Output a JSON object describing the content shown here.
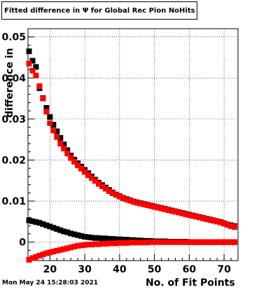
{
  "title": "Fitted difference in  Ψ  for Global Rec Pion NoHits",
  "footer": "Mon May 24 15:28:03 2021",
  "chart_data": {
    "type": "scatter",
    "title": "Fitted difference in  Ψ  for Global Rec Pion NoHits",
    "xlabel": "No. of Fit Points",
    "ylabel": "difference in",
    "xlim": [
      13.7,
      74
    ],
    "ylim": [
      -0.0045,
      0.052
    ],
    "grid": true,
    "x_ticks": [
      20,
      30,
      40,
      50,
      60,
      70
    ],
    "x_tick_labels": [
      "20",
      "30",
      "40",
      "50",
      "60",
      "70"
    ],
    "y_ticks": [
      0,
      0.01,
      0.02,
      0.03,
      0.04,
      0.05
    ],
    "y_tick_labels": [
      "0",
      "0.01",
      "0.02",
      "0.03",
      "0.04",
      "0.05"
    ],
    "x": [
      14,
      15,
      16,
      17,
      18,
      19,
      20,
      21,
      22,
      23,
      24,
      25,
      26,
      27,
      28,
      29,
      30,
      31,
      32,
      33,
      34,
      35,
      36,
      37,
      38,
      39,
      40,
      41,
      42,
      43,
      44,
      45,
      46,
      47,
      48,
      49,
      50,
      51,
      52,
      53,
      54,
      55,
      56,
      57,
      58,
      59,
      60,
      61,
      62,
      63,
      64,
      65,
      66,
      67,
      68,
      69,
      70,
      71,
      72,
      73
    ],
    "series": [
      {
        "color": "#000000",
        "marker": "square",
        "values": [
          0.0465,
          0.0442,
          0.0427,
          0.0375,
          0.0351,
          0.0327,
          0.0305,
          0.0286,
          0.027,
          0.0254,
          0.0238,
          0.0224,
          0.0211,
          0.0201,
          0.0192,
          0.0184,
          0.0176,
          0.0168,
          0.016,
          0.0152,
          0.0145,
          0.0139,
          0.0133,
          0.0127,
          0.0121,
          0.0116,
          0.0112,
          0.0108,
          0.0105,
          0.0102,
          0.0099,
          0.0097,
          0.0095,
          0.0093,
          0.0091,
          0.0089,
          0.0087,
          0.0085,
          0.0083,
          0.0081,
          0.0079,
          0.0077,
          0.0075,
          0.0073,
          0.0071,
          0.0069,
          0.0067,
          0.0065,
          0.0063,
          0.0061,
          0.0059,
          0.0057,
          0.0055,
          0.0053,
          0.0051,
          0.0049,
          0.0046,
          0.0043,
          0.0041,
          0.0039
        ]
      },
      {
        "color": "#ff0000",
        "marker": "square",
        "values": [
          0.0435,
          0.0418,
          0.0406,
          0.038,
          0.035,
          0.0318,
          0.029,
          0.0272,
          0.0256,
          0.024,
          0.0228,
          0.0216,
          0.0205,
          0.0196,
          0.0187,
          0.0179,
          0.0171,
          0.0163,
          0.0156,
          0.0149,
          0.0142,
          0.0136,
          0.013,
          0.0124,
          0.0119,
          0.0115,
          0.0111,
          0.0107,
          0.0104,
          0.0101,
          0.0098,
          0.0096,
          0.0094,
          0.0092,
          0.009,
          0.0088,
          0.0086,
          0.0084,
          0.0082,
          0.008,
          0.0078,
          0.0076,
          0.0074,
          0.0072,
          0.007,
          0.0068,
          0.0066,
          0.0064,
          0.0062,
          0.006,
          0.0058,
          0.0056,
          0.0054,
          0.0052,
          0.005,
          0.0048,
          0.0045,
          0.0042,
          0.0039,
          0.0037
        ]
      },
      {
        "color": "#000000",
        "marker": "square",
        "values": [
          0.0053,
          0.0051,
          0.0049,
          0.0047,
          0.0044,
          0.0041,
          0.0038,
          0.0035,
          0.0032,
          0.0029,
          0.0026,
          0.0024,
          0.0021,
          0.0019,
          0.0017,
          0.0015,
          0.0013,
          0.0012,
          0.0011,
          0.001,
          0.001,
          0.0009,
          0.0009,
          0.0008,
          0.0008,
          0.0007,
          0.0007,
          0.0006,
          0.0006,
          0.0005,
          0.0005,
          0.0004,
          0.0004,
          0.0003,
          0.0003,
          0.0003,
          0.0002,
          0.0002,
          0.0002,
          0.0002,
          0.0001,
          0.0001,
          0.0001,
          0.0001,
          0.0001,
          0.0001,
          0.0,
          0.0,
          0.0,
          0.0,
          0.0,
          0.0,
          0.0,
          0.0,
          0.0,
          0.0,
          0.0,
          0.0,
          0.0,
          0.0
        ]
      },
      {
        "color": "#ff0000",
        "marker": "square",
        "values": [
          -0.0043,
          -0.0039,
          -0.0036,
          -0.0033,
          -0.003,
          -0.0027,
          -0.0025,
          -0.0023,
          -0.0021,
          -0.0019,
          -0.0017,
          -0.0015,
          -0.0013,
          -0.0011,
          -0.0009,
          -0.0008,
          -0.0007,
          -0.0006,
          -0.0006,
          -0.0005,
          -0.0005,
          -0.0004,
          -0.0004,
          -0.0003,
          -0.0003,
          -0.0003,
          -0.0002,
          -0.0002,
          -0.0002,
          -0.0001,
          -0.0001,
          -0.0001,
          -0.0001,
          -0.0001,
          -0.0001,
          0.0,
          0.0,
          0.0,
          0.0,
          0.0,
          0.0,
          0.0,
          0.0,
          0.0,
          0.0,
          0.0,
          0.0,
          0.0,
          0.0,
          0.0,
          0.0,
          0.0,
          0.0,
          0.0,
          0.0,
          0.0,
          0.0,
          0.0,
          0.0,
          0.0
        ]
      }
    ]
  }
}
